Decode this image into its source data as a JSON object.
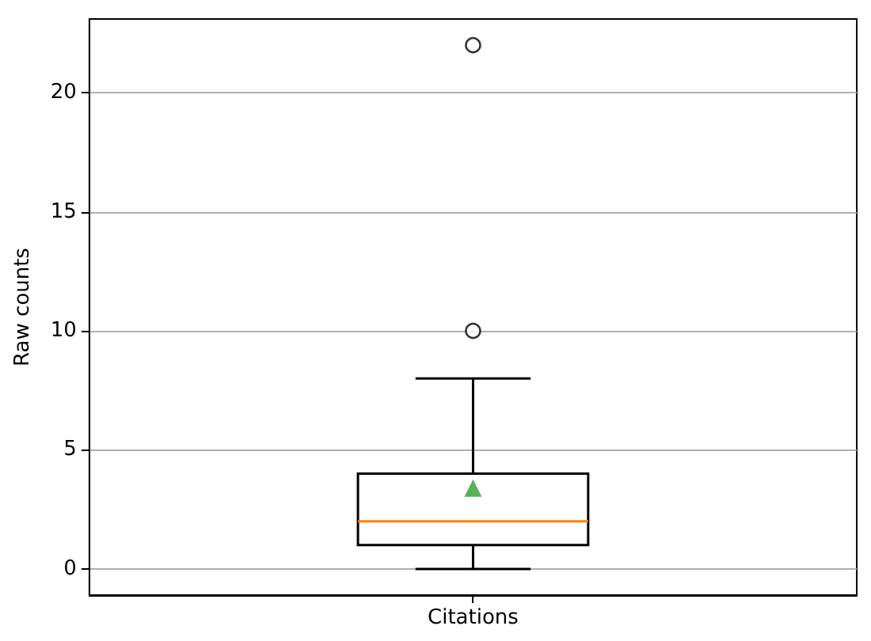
{
  "chart_data": {
    "type": "box",
    "ylabel": "Raw counts",
    "categories": [
      "Citations"
    ],
    "boxes": [
      {
        "low": 0,
        "q1": 1,
        "median": 2,
        "q3": 4,
        "high": 8,
        "mean": 3.4,
        "outliers": [
          10,
          22
        ]
      }
    ],
    "color": "#000000",
    "ylim": [
      -1.1,
      23.1
    ],
    "yticks": [
      0,
      5,
      10,
      15,
      20
    ],
    "grid": "y",
    "legend": false
  }
}
